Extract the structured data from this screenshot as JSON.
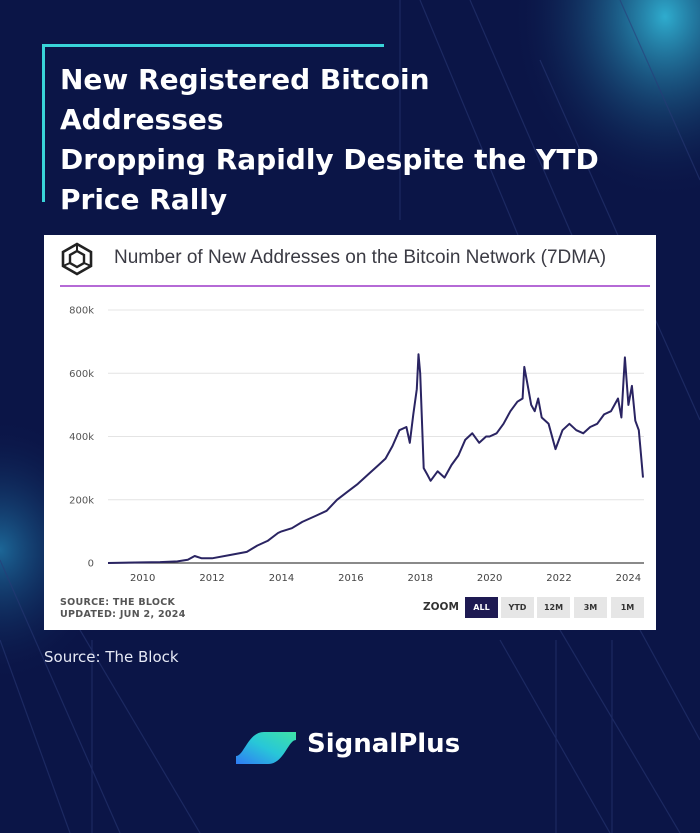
{
  "headline": {
    "line1": "New Registered Bitcoin Addresses",
    "line2": "Dropping Rapidly Despite the YTD",
    "line3": "Price Rally"
  },
  "card": {
    "logo_icon": "theblock-cube-icon",
    "title": "Number of New Addresses on the Bitcoin Network (7DMA)",
    "source_line": "SOURCE: THE BLOCK",
    "updated_line": "UPDATED: JUN 2, 2024",
    "zoom_label": "ZOOM",
    "zoom_buttons": [
      "ALL",
      "YTD",
      "12M",
      "3M",
      "1M"
    ],
    "zoom_selected": "ALL"
  },
  "source_note": "Source: The Block",
  "brand": {
    "name": "SignalPlus",
    "logo_icon": "signalplus-logo-icon"
  },
  "colors": {
    "background": "#0b1547",
    "accent": "#39d4d9",
    "line": "#2a2462",
    "header_rule": "#b56ad6",
    "zoom_active": "#1e1a52"
  },
  "chart_data": {
    "type": "line",
    "title": "Number of New Addresses on the Bitcoin Network (7DMA)",
    "xlabel": "",
    "ylabel": "",
    "xlim": [
      2009.0,
      2024.45
    ],
    "ylim": [
      0,
      800000
    ],
    "y_ticks": [
      0,
      200000,
      400000,
      600000,
      800000
    ],
    "y_tick_labels": [
      "0",
      "200k",
      "400k",
      "600k",
      "800k"
    ],
    "x_ticks": [
      2010,
      2012,
      2014,
      2016,
      2018,
      2020,
      2022,
      2024
    ],
    "x_tick_labels": [
      "2010",
      "2012",
      "2014",
      "2016",
      "2018",
      "2020",
      "2022",
      "2024"
    ],
    "grid": "horizontal",
    "legend": "none",
    "series": [
      {
        "x": [
          2009.0,
          2010.0,
          2010.5,
          2011.0,
          2011.3,
          2011.5,
          2011.7,
          2012.0,
          2012.5,
          2013.0,
          2013.3,
          2013.6,
          2013.9,
          2014.0,
          2014.3,
          2014.6,
          2015.0,
          2015.3,
          2015.6,
          2015.9,
          2016.2,
          2016.5,
          2016.8,
          2017.0,
          2017.2,
          2017.4,
          2017.6,
          2017.7,
          2017.8,
          2017.9,
          2017.95,
          2018.0,
          2018.1,
          2018.2,
          2018.3,
          2018.5,
          2018.7,
          2018.9,
          2019.1,
          2019.3,
          2019.5,
          2019.7,
          2019.9,
          2020.0,
          2020.2,
          2020.4,
          2020.6,
          2020.8,
          2020.95,
          2021.0,
          2021.1,
          2021.2,
          2021.3,
          2021.4,
          2021.5,
          2021.7,
          2021.9,
          2022.1,
          2022.3,
          2022.5,
          2022.7,
          2022.9,
          2023.1,
          2023.3,
          2023.5,
          2023.6,
          2023.7,
          2023.8,
          2023.85,
          2023.9,
          2024.0,
          2024.1,
          2024.2,
          2024.3,
          2024.35,
          2024.42
        ],
        "y": [
          0,
          2000,
          3000,
          5000,
          10000,
          22000,
          15000,
          15000,
          25000,
          35000,
          55000,
          70000,
          95000,
          100000,
          110000,
          130000,
          150000,
          165000,
          200000,
          225000,
          250000,
          280000,
          310000,
          330000,
          370000,
          420000,
          430000,
          380000,
          470000,
          550000,
          660000,
          600000,
          300000,
          280000,
          260000,
          290000,
          270000,
          310000,
          340000,
          390000,
          410000,
          380000,
          400000,
          400000,
          410000,
          440000,
          480000,
          510000,
          520000,
          620000,
          560000,
          500000,
          480000,
          520000,
          460000,
          440000,
          360000,
          420000,
          440000,
          420000,
          410000,
          430000,
          440000,
          470000,
          480000,
          500000,
          520000,
          460000,
          560000,
          650000,
          500000,
          560000,
          450000,
          420000,
          360000,
          270000
        ]
      }
    ]
  }
}
